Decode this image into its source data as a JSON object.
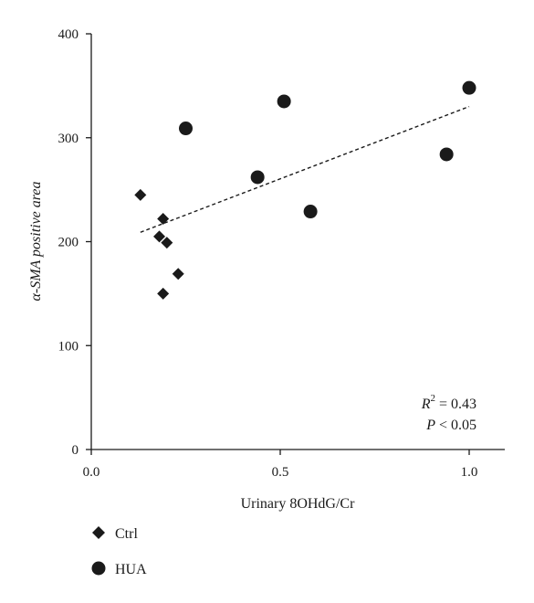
{
  "chart_data": {
    "type": "scatter",
    "title": "",
    "xlabel": "Urinary 8OHdG/Cr",
    "ylabel": "α-SMA positive area",
    "xlim": [
      0.0,
      1.1
    ],
    "ylim": [
      0,
      400
    ],
    "x_ticks": [
      {
        "value": 0.0,
        "label": "0.0"
      },
      {
        "value": 0.5,
        "label": "0.5"
      },
      {
        "value": 1.0,
        "label": "1.0"
      }
    ],
    "y_ticks": [
      {
        "value": 0,
        "label": "0"
      },
      {
        "value": 100,
        "label": "100"
      },
      {
        "value": 200,
        "label": "200"
      },
      {
        "value": 300,
        "label": "300"
      },
      {
        "value": 400,
        "label": "400"
      }
    ],
    "grid": false,
    "legend_position": "below-left",
    "series": [
      {
        "name": "Ctrl",
        "marker": "diamond",
        "color": "#1a1a1a",
        "points": [
          {
            "x": 0.13,
            "y": 245
          },
          {
            "x": 0.18,
            "y": 205
          },
          {
            "x": 0.19,
            "y": 222
          },
          {
            "x": 0.2,
            "y": 199
          },
          {
            "x": 0.19,
            "y": 150
          },
          {
            "x": 0.23,
            "y": 169
          }
        ]
      },
      {
        "name": "HUA",
        "marker": "circle",
        "color": "#1a1a1a",
        "points": [
          {
            "x": 0.25,
            "y": 309
          },
          {
            "x": 0.44,
            "y": 262
          },
          {
            "x": 0.51,
            "y": 335
          },
          {
            "x": 0.58,
            "y": 229
          },
          {
            "x": 0.94,
            "y": 284
          },
          {
            "x": 1.0,
            "y": 348
          }
        ]
      }
    ],
    "trendline": {
      "style": "dashed",
      "x": [
        0.13,
        1.0
      ],
      "y": [
        209,
        330
      ]
    },
    "annotations": {
      "r_squared": {
        "symbol": "R",
        "exponent": "2",
        "value": " = 0.43"
      },
      "p_value": {
        "symbol": "P",
        "value": " < 0.05"
      }
    }
  }
}
